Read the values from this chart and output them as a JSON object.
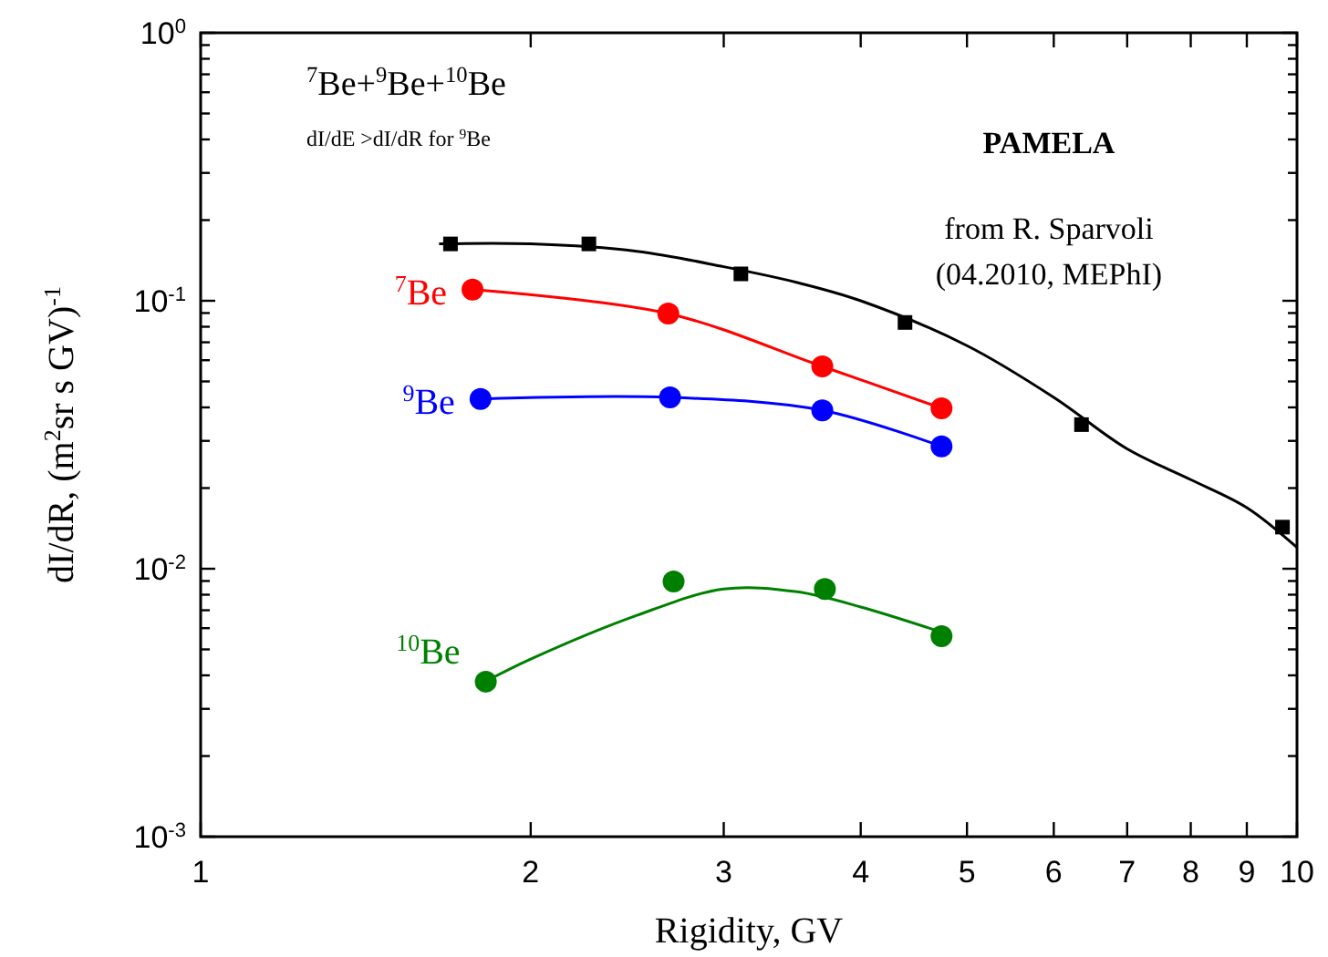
{
  "chart_data": {
    "type": "line",
    "xlabel": "Rigidity, GV",
    "ylabel": "dI/dR, (m$^{2}$sr s GV)$^{-1}$",
    "log": "xy",
    "grid": false,
    "xlim": [
      1,
      10
    ],
    "xticks": [
      1,
      2,
      3,
      4,
      5,
      6,
      7,
      8,
      9,
      10
    ],
    "ylim": [
      0.001,
      1
    ],
    "yticks": [
      {
        "value": 0.001,
        "label": "10$^{-3}$"
      },
      {
        "value": 0.002,
        "label": null
      },
      {
        "value": 0.003,
        "label": null
      },
      {
        "value": 0.004,
        "label": null
      },
      {
        "value": 0.005,
        "label": null
      },
      {
        "value": 0.006,
        "label": null
      },
      {
        "value": 0.007,
        "label": null
      },
      {
        "value": 0.008,
        "label": null
      },
      {
        "value": 0.009,
        "label": null
      },
      {
        "value": 0.01,
        "label": "10$^{-2}$"
      },
      {
        "value": 0.02,
        "label": null
      },
      {
        "value": 0.03,
        "label": null
      },
      {
        "value": 0.04,
        "label": null
      },
      {
        "value": 0.05,
        "label": null
      },
      {
        "value": 0.06,
        "label": null
      },
      {
        "value": 0.07,
        "label": null
      },
      {
        "value": 0.08,
        "label": null
      },
      {
        "value": 0.09,
        "label": null
      },
      {
        "value": 0.1,
        "label": "10$^{-1}$"
      },
      {
        "value": 0.2,
        "label": null
      },
      {
        "value": 0.3,
        "label": null
      },
      {
        "value": 0.4,
        "label": null
      },
      {
        "value": 0.5,
        "label": null
      },
      {
        "value": 0.6,
        "label": null
      },
      {
        "value": 0.7,
        "label": null
      },
      {
        "value": 0.8,
        "label": null
      },
      {
        "value": 0.9,
        "label": null
      },
      {
        "value": 1,
        "label": "10$^{0}$"
      }
    ],
    "annotations": [
      "$^{7}$Be+$^{9}$Be+$^{10}$Be",
      "dI/dE >dI/dR for $^{9}$Be",
      "PAMELA",
      "from R. Sparvoli",
      "(04.2010, MEPhI)"
    ],
    "series": [
      {
        "color": "#000000",
        "marker": "none",
        "x": [
          1.65,
          2.0,
          2.5,
          3.0,
          3.5,
          4.0,
          5.0,
          6.0,
          7.0,
          8.0,
          9.0,
          10.0
        ],
        "values": [
          0.163,
          0.163,
          0.153,
          0.134,
          0.117,
          0.1,
          0.068,
          0.0436,
          0.028,
          0.0215,
          0.0169,
          0.012
        ]
      },
      {
        "type": "scatter",
        "color": "#000000",
        "marker": "square",
        "x": [
          1.69,
          2.26,
          3.11,
          4.39,
          6.36,
          9.7
        ],
        "values": [
          0.163,
          0.163,
          0.126,
          0.083,
          0.0345,
          0.0143
        ]
      },
      {
        "type": "line",
        "name": "$^{7}$Be",
        "color": "#ff0000",
        "marker": "circle",
        "x": [
          1.77,
          2.67,
          3.69,
          4.74
        ],
        "values": [
          0.11,
          0.0896,
          0.0569,
          0.0397
        ]
      },
      {
        "type": "line",
        "name": "$^{9}$Be",
        "color": "#0000ff",
        "marker": "circle",
        "x": [
          1.8,
          2.68,
          3.69,
          4.74
        ],
        "values": [
          0.043,
          0.0436,
          0.039,
          0.0286
        ]
      },
      {
        "color": "#008000",
        "marker": "none",
        "x": [
          1.82,
          2.0,
          2.5,
          3.0,
          3.5,
          4.0,
          4.74
        ],
        "values": [
          0.0038,
          0.0046,
          0.0067,
          0.0084,
          0.0082,
          0.0072,
          0.0058
        ]
      },
      {
        "type": "scatter",
        "name": "$^{10}$Be",
        "color": "#008000",
        "marker": "circle",
        "x": [
          1.82,
          2.7,
          3.71,
          4.74
        ],
        "values": [
          0.00379,
          0.00896,
          0.0084,
          0.0056
        ]
      }
    ]
  }
}
